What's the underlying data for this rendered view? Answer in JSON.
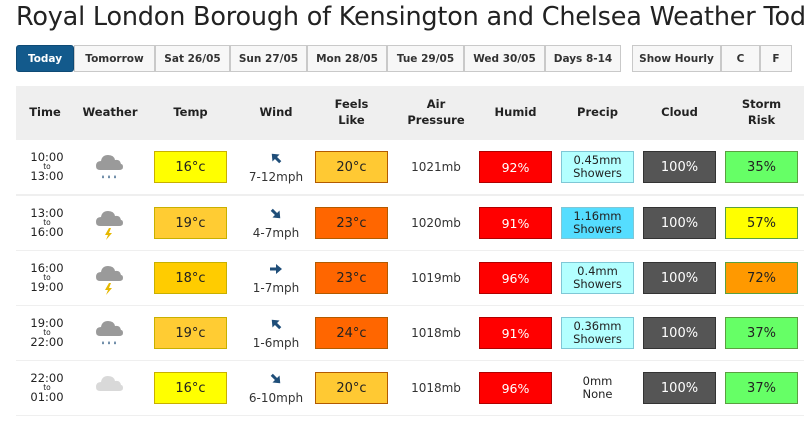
{
  "title": "Royal London Borough of Kensington and Chelsea Weather Today",
  "tabs": [
    {
      "label": "Today",
      "active": true
    },
    {
      "label": "Tomorrow"
    },
    {
      "label": "Sat 26/05"
    },
    {
      "label": "Sun 27/05"
    },
    {
      "label": "Mon 28/05"
    },
    {
      "label": "Tue 29/05"
    },
    {
      "label": "Wed 30/05"
    },
    {
      "label": "Days 8-14"
    }
  ],
  "view_options": [
    {
      "label": "Show Hourly"
    },
    {
      "label": "C"
    },
    {
      "label": "F"
    }
  ],
  "headers": {
    "time": "Time",
    "weather": "Weather",
    "temp": "Temp",
    "wind": "Wind",
    "feels_1": "Feels",
    "feels_2": "Like",
    "air_1": "Air",
    "air_2": "Pressure",
    "humid": "Humid",
    "precip": "Precip",
    "cloud": "Cloud",
    "storm_1": "Storm",
    "storm_2": "Risk"
  },
  "rows": [
    {
      "from": "10:00",
      "to_label": "to",
      "to": "13:00",
      "weather": "cloud-rain-icon",
      "temp": "16°c",
      "temp_color": "#ffff00",
      "wind_dir": "up-left",
      "wind": "7-12mph",
      "feels": "20°c",
      "feels_color": "#ffc933",
      "pressure": "1021mb",
      "humid": "92%",
      "precip_1": "0.45mm",
      "precip_2": "Showers",
      "precip_color": "#b3ffff",
      "cloud": "100%",
      "storm": "35%",
      "storm_color": "#66ff66"
    },
    {
      "from": "13:00",
      "to_label": "to",
      "to": "16:00",
      "weather": "cloud-lightning-icon",
      "temp": "19°c",
      "temp_color": "#ffcc33",
      "wind_dir": "down-right",
      "wind": "4-7mph",
      "feels": "23°c",
      "feels_color": "#ff6600",
      "pressure": "1020mb",
      "humid": "91%",
      "precip_1": "1.16mm",
      "precip_2": "Showers",
      "precip_color": "#55ddff",
      "cloud": "100%",
      "storm": "57%",
      "storm_color": "#ffff00"
    },
    {
      "from": "16:00",
      "to_label": "to",
      "to": "19:00",
      "weather": "cloud-lightning-icon",
      "temp": "18°c",
      "temp_color": "#ffcc00",
      "wind_dir": "right",
      "wind": "1-7mph",
      "feels": "23°c",
      "feels_color": "#ff6600",
      "pressure": "1019mb",
      "humid": "96%",
      "precip_1": "0.4mm",
      "precip_2": "Showers",
      "precip_color": "#b3ffff",
      "cloud": "100%",
      "storm": "72%",
      "storm_color": "#ff9900"
    },
    {
      "from": "19:00",
      "to_label": "to",
      "to": "22:00",
      "weather": "cloud-rain-icon",
      "temp": "19°c",
      "temp_color": "#ffcc33",
      "wind_dir": "up-left",
      "wind": "1-6mph",
      "feels": "24°c",
      "feels_color": "#ff6600",
      "pressure": "1018mb",
      "humid": "91%",
      "precip_1": "0.36mm",
      "precip_2": "Showers",
      "precip_color": "#b3ffff",
      "cloud": "100%",
      "storm": "37%",
      "storm_color": "#66ff66"
    },
    {
      "from": "22:00",
      "to_label": "to",
      "to": "01:00",
      "weather": "cloud-icon",
      "temp": "16°c",
      "temp_color": "#ffff00",
      "wind_dir": "down-right",
      "wind": "6-10mph",
      "feels": "20°c",
      "feels_color": "#ffc933",
      "pressure": "1018mb",
      "humid": "96%",
      "precip_1": "0mm",
      "precip_2": "None",
      "precip_color": "",
      "cloud": "100%",
      "storm": "37%",
      "storm_color": "#66ff66"
    }
  ]
}
